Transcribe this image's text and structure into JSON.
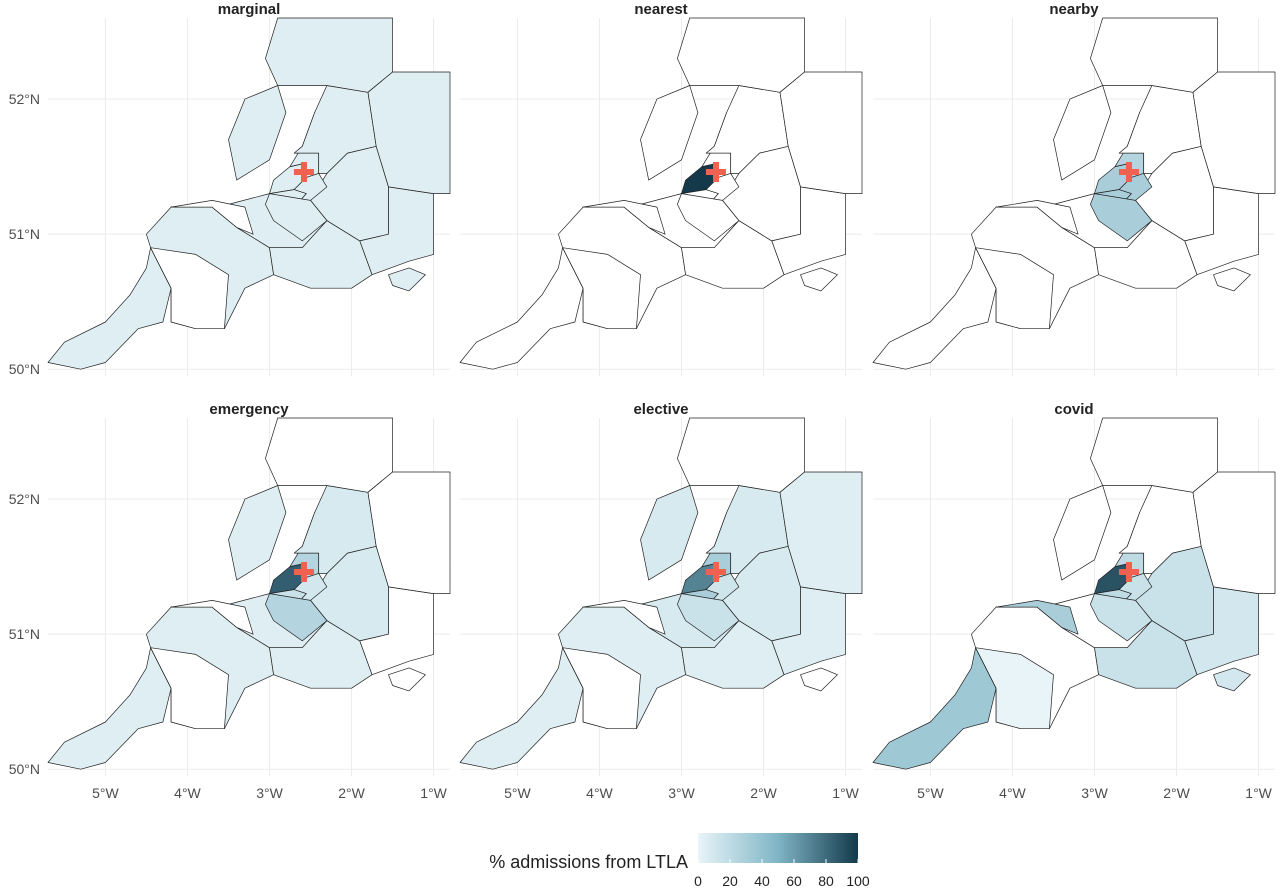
{
  "figure": {
    "panels": [
      {
        "title": "marginal",
        "shading": {
          "cornwall": 5,
          "devon": 5,
          "somerset": 5,
          "dorset": 5,
          "wiltshire": 5,
          "hampshire_w": 5,
          "bristol_n": 5,
          "bristol": 5,
          "nsomerset": 5,
          "bath": 5,
          "mendip": 5,
          "isle_of_wight": 5,
          "wales_s": 5,
          "gloucs": 5,
          "midlands": 5,
          "oxford": 5
        }
      },
      {
        "title": "nearest",
        "shading": {
          "bristol": 100
        }
      },
      {
        "title": "nearby",
        "shading": {
          "bristol": 30,
          "bristol_n": 25,
          "nsomerset": 30,
          "bath": 30,
          "mendip": 30,
          "gloucs_stroud": 20
        }
      },
      {
        "title": "emergency",
        "shading": {
          "bristol": 85,
          "bristol_n": 25,
          "nsomerset": 15,
          "bath": 10,
          "mendip": 25,
          "cornwall": 5,
          "devon": 5,
          "somerset": 5,
          "dorset": 5,
          "wiltshire": 8,
          "wales_s": 5,
          "gloucs": 8
        }
      },
      {
        "title": "elective",
        "shading": {
          "bristol": 70,
          "bristol_n": 30,
          "nsomerset": 30,
          "bath": 12,
          "mendip": 15,
          "cornwall": 5,
          "devon": 5,
          "somerset": 8,
          "dorset": 5,
          "wiltshire": 8,
          "hampshire_w": 5,
          "wales_s": 8,
          "gloucs": 8,
          "oxford": 5
        }
      },
      {
        "title": "covid",
        "shading": {
          "bristol": 90,
          "bristol_n": 20,
          "nsomerset": 20,
          "bath": 15,
          "mendip": 15,
          "cornwall": 35,
          "devon_w": 0,
          "somerset_w": 30,
          "dorset": 15,
          "wiltshire": 15,
          "hampshire_w": 10,
          "isle_of_wight": 10,
          "gloucs_stroud": 15
        }
      }
    ],
    "x_ticks": [
      "5°W",
      "4°W",
      "3°W",
      "2°W",
      "1°W"
    ],
    "y_ticks": [
      "52°N",
      "51°N",
      "50°N"
    ],
    "legend": {
      "title": "% admissions from LTLA",
      "ticks": [
        "0",
        "20",
        "40",
        "60",
        "80",
        "100"
      ],
      "low_color": "#e8f4f8",
      "high_color": "#13394a"
    },
    "marker": {
      "shape": "cross",
      "color": "#f0614f",
      "location": "Bristol"
    }
  }
}
